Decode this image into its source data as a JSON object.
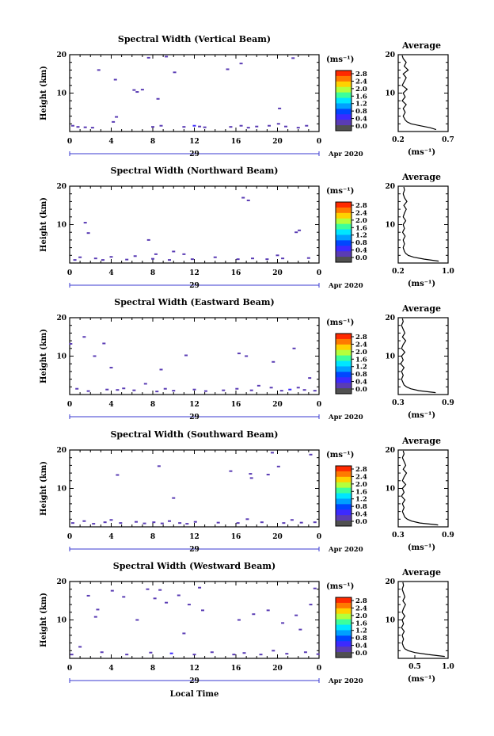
{
  "figure": {
    "xlabel": "Local Time",
    "date_label": "Apr 2020",
    "day_label": "29",
    "ylabel": "Height (km)",
    "unit_label": "(ms⁻¹)",
    "avg_title": "Average",
    "avg_xlabel": "(ms⁻¹)"
  },
  "colorbar": {
    "ticks": [
      "2.8",
      "2.4",
      "2.0",
      "1.6",
      "1.2",
      "0.8",
      "0.4",
      "0.0"
    ],
    "colors": [
      "#ff2a00",
      "#ff7a00",
      "#ffd200",
      "#b4ff3c",
      "#3cff9c",
      "#00e6ff",
      "#00a0ff",
      "#0046ff",
      "#3c2aff",
      "#5a3cb4",
      "#505050"
    ]
  },
  "chart_data": [
    {
      "type": "heatmap",
      "title": "Spectral Width (Vertical Beam)",
      "xlabel": "",
      "ylabel": "Height (km)",
      "xlim": [
        0,
        24
      ],
      "ylim": [
        0,
        20
      ],
      "x_ticks": [
        "0",
        "4",
        "8",
        "12",
        "16",
        "20",
        "0"
      ],
      "y_ticks": [
        "20",
        "10"
      ],
      "points": [
        [
          0.3,
          1.5,
          0.3
        ],
        [
          0.8,
          1.2,
          0.2
        ],
        [
          1.5,
          1.1,
          0.2
        ],
        [
          2.2,
          1.0,
          0.2
        ],
        [
          2.8,
          16,
          0.2
        ],
        [
          4.2,
          2.5,
          0.3
        ],
        [
          4.5,
          3.8,
          0.3
        ],
        [
          4.4,
          13.5,
          0.2
        ],
        [
          6.2,
          10.8,
          0.3
        ],
        [
          6.5,
          10.3,
          0.2
        ],
        [
          7.0,
          10.9,
          0.2
        ],
        [
          7.6,
          19.2,
          0.2
        ],
        [
          8.0,
          1.2,
          0.3
        ],
        [
          8.5,
          8.5,
          0.2
        ],
        [
          8.8,
          1.5,
          0.2
        ],
        [
          9.3,
          19.5,
          0.3
        ],
        [
          10.1,
          15.4,
          0.2
        ],
        [
          11.0,
          1.2,
          0.3
        ],
        [
          12.0,
          1.5,
          0.6
        ],
        [
          12.5,
          1.3,
          0.3
        ],
        [
          13.0,
          1.1,
          0.2
        ],
        [
          15.2,
          16.2,
          0.2
        ],
        [
          15.5,
          1.2,
          0.3
        ],
        [
          16.5,
          1.5,
          0.4
        ],
        [
          16.5,
          17.7,
          0.2
        ],
        [
          17.2,
          1.0,
          0.2
        ],
        [
          18.0,
          1.3,
          0.3
        ],
        [
          19.2,
          1.5,
          0.2
        ],
        [
          20.1,
          2.0,
          0.3
        ],
        [
          20.2,
          6.0,
          0.2
        ],
        [
          20.8,
          1.3,
          0.3
        ],
        [
          21.5,
          19.1,
          0.2
        ],
        [
          22.0,
          1.0,
          0.2
        ],
        [
          22.8,
          1.5,
          0.3
        ]
      ]
    },
    {
      "type": "heatmap",
      "title": "Spectral Width (Northward Beam)",
      "xlabel": "",
      "ylabel": "Height (km)",
      "xlim": [
        0,
        24
      ],
      "ylim": [
        0,
        20
      ],
      "x_ticks": [
        "0",
        "4",
        "8",
        "12",
        "16",
        "20",
        "0"
      ],
      "y_ticks": [
        "20",
        "10"
      ],
      "points": [
        [
          0.5,
          0.8,
          0.3
        ],
        [
          1.0,
          1.5,
          0.2
        ],
        [
          1.5,
          10.5,
          0.2
        ],
        [
          1.8,
          7.8,
          0.2
        ],
        [
          2.5,
          1.2,
          0.3
        ],
        [
          3.2,
          0.8,
          0.2
        ],
        [
          4.0,
          1.6,
          0.4
        ],
        [
          5.5,
          0.9,
          0.2
        ],
        [
          6.3,
          1.8,
          0.2
        ],
        [
          7.6,
          6.0,
          0.2
        ],
        [
          8.0,
          1.1,
          0.3
        ],
        [
          8.3,
          2.3,
          0.2
        ],
        [
          9.6,
          0.8,
          0.2
        ],
        [
          10.0,
          3.0,
          0.2
        ],
        [
          11.0,
          2.3,
          0.2
        ],
        [
          11.8,
          1.0,
          0.3
        ],
        [
          14.0,
          1.5,
          0.2
        ],
        [
          16.2,
          1.0,
          0.2
        ],
        [
          16.7,
          17.0,
          0.2
        ],
        [
          17.2,
          16.3,
          0.2
        ],
        [
          17.6,
          1.2,
          0.3
        ],
        [
          19.0,
          1.0,
          0.2
        ],
        [
          20.0,
          2.0,
          0.2
        ],
        [
          20.5,
          1.2,
          0.3
        ],
        [
          21.8,
          8.0,
          0.2
        ],
        [
          22.1,
          8.5,
          0.2
        ],
        [
          23.0,
          1.3,
          0.4
        ]
      ]
    },
    {
      "type": "heatmap",
      "title": "Spectral Width (Eastward Beam)",
      "xlabel": "",
      "ylabel": "Height (km)",
      "xlim": [
        0,
        24
      ],
      "ylim": [
        0,
        20
      ],
      "x_ticks": [
        "0",
        "4",
        "8",
        "12",
        "16",
        "20",
        "0"
      ],
      "y_ticks": [
        "20",
        "10"
      ],
      "points": [
        [
          0.1,
          13.2,
          0.2
        ],
        [
          0.7,
          1.5,
          0.3
        ],
        [
          1.4,
          15.0,
          0.2
        ],
        [
          1.8,
          0.9,
          0.3
        ],
        [
          2.4,
          10.0,
          0.2
        ],
        [
          3.3,
          13.3,
          0.2
        ],
        [
          3.6,
          1.3,
          0.3
        ],
        [
          4.0,
          7.0,
          0.2
        ],
        [
          4.6,
          1.2,
          0.4
        ],
        [
          5.2,
          1.6,
          0.3
        ],
        [
          6.2,
          1.1,
          0.2
        ],
        [
          7.3,
          2.8,
          0.2
        ],
        [
          8.4,
          0.8,
          0.3
        ],
        [
          8.8,
          6.5,
          0.2
        ],
        [
          9.2,
          1.5,
          0.3
        ],
        [
          10.0,
          1.0,
          0.2
        ],
        [
          11.2,
          10.2,
          0.2
        ],
        [
          12.0,
          1.3,
          0.3
        ],
        [
          13.1,
          0.9,
          0.2
        ],
        [
          14.8,
          1.1,
          0.3
        ],
        [
          16.1,
          1.5,
          0.2
        ],
        [
          16.3,
          10.7,
          0.2
        ],
        [
          17.0,
          10.0,
          0.2
        ],
        [
          17.5,
          1.1,
          0.3
        ],
        [
          18.2,
          2.3,
          0.2
        ],
        [
          19.4,
          1.8,
          0.4
        ],
        [
          19.6,
          8.5,
          0.2
        ],
        [
          20.4,
          1.0,
          0.2
        ],
        [
          21.2,
          1.3,
          0.5
        ],
        [
          21.6,
          12.0,
          0.2
        ],
        [
          22.0,
          1.8,
          0.3
        ],
        [
          22.6,
          1.2,
          0.2
        ],
        [
          23.1,
          4.3,
          0.2
        ],
        [
          23.6,
          1.0,
          0.3
        ]
      ]
    },
    {
      "type": "heatmap",
      "title": "Spectral Width (Southward Beam)",
      "xlabel": "",
      "ylabel": "Height (km)",
      "xlim": [
        0,
        24
      ],
      "ylim": [
        0,
        20
      ],
      "x_ticks": [
        "0",
        "4",
        "8",
        "12",
        "16",
        "20",
        "0"
      ],
      "y_ticks": [
        "20",
        "10"
      ],
      "points": [
        [
          0.3,
          1.0,
          0.3
        ],
        [
          1.4,
          1.5,
          0.2
        ],
        [
          2.3,
          0.8,
          0.3
        ],
        [
          3.4,
          1.2,
          0.2
        ],
        [
          4.0,
          1.8,
          0.4
        ],
        [
          4.6,
          13.5,
          0.2
        ],
        [
          4.9,
          1.0,
          0.2
        ],
        [
          6.4,
          1.3,
          0.3
        ],
        [
          7.2,
          0.9,
          0.2
        ],
        [
          8.1,
          1.2,
          0.4
        ],
        [
          8.6,
          15.8,
          0.2
        ],
        [
          8.9,
          0.9,
          0.3
        ],
        [
          9.6,
          1.5,
          0.2
        ],
        [
          10.0,
          7.5,
          0.2
        ],
        [
          10.6,
          1.0,
          0.2
        ],
        [
          11.3,
          0.8,
          0.3
        ],
        [
          12.1,
          1.3,
          0.2
        ],
        [
          14.3,
          1.1,
          0.2
        ],
        [
          15.5,
          14.5,
          0.2
        ],
        [
          16.2,
          1.0,
          0.3
        ],
        [
          17.1,
          2.0,
          0.2
        ],
        [
          17.4,
          13.8,
          0.2
        ],
        [
          17.5,
          12.7,
          0.2
        ],
        [
          18.5,
          1.2,
          0.3
        ],
        [
          19.1,
          13.6,
          0.2
        ],
        [
          19.5,
          19.3,
          0.2
        ],
        [
          20.1,
          15.7,
          0.2
        ],
        [
          20.6,
          1.0,
          0.3
        ],
        [
          21.4,
          1.8,
          0.2
        ],
        [
          22.3,
          1.1,
          0.2
        ],
        [
          23.2,
          18.8,
          0.2
        ],
        [
          23.6,
          1.2,
          0.3
        ]
      ]
    },
    {
      "type": "heatmap",
      "title": "Spectral Width (Westward Beam)",
      "xlabel": "Local Time",
      "ylabel": "Height (km)",
      "xlim": [
        0,
        24
      ],
      "ylim": [
        0,
        20
      ],
      "x_ticks": [
        "0",
        "4",
        "8",
        "12",
        "16",
        "20",
        "0"
      ],
      "y_ticks": [
        "20",
        "10"
      ],
      "points": [
        [
          0.2,
          1.0,
          0.3
        ],
        [
          1.0,
          3.0,
          0.2
        ],
        [
          1.8,
          16.3,
          0.2
        ],
        [
          2.5,
          10.8,
          0.2
        ],
        [
          2.7,
          12.7,
          0.2
        ],
        [
          3.1,
          1.6,
          0.3
        ],
        [
          4.1,
          17.6,
          0.2
        ],
        [
          5.2,
          16.0,
          0.2
        ],
        [
          5.5,
          1.0,
          0.3
        ],
        [
          6.5,
          10.0,
          0.2
        ],
        [
          7.5,
          18.0,
          0.2
        ],
        [
          7.8,
          1.5,
          0.3
        ],
        [
          8.2,
          15.6,
          0.2
        ],
        [
          8.7,
          17.8,
          0.2
        ],
        [
          9.3,
          14.5,
          0.2
        ],
        [
          9.8,
          1.3,
          0.5
        ],
        [
          10.5,
          16.4,
          0.2
        ],
        [
          11.0,
          6.5,
          0.2
        ],
        [
          11.5,
          14.0,
          0.2
        ],
        [
          12.0,
          1.0,
          0.2
        ],
        [
          12.5,
          18.4,
          0.2
        ],
        [
          12.8,
          12.5,
          0.2
        ],
        [
          13.7,
          1.6,
          0.3
        ],
        [
          15.8,
          1.0,
          0.2
        ],
        [
          16.3,
          10.0,
          0.2
        ],
        [
          16.8,
          1.4,
          0.3
        ],
        [
          17.7,
          11.5,
          0.2
        ],
        [
          18.4,
          1.0,
          0.2
        ],
        [
          19.1,
          12.5,
          0.2
        ],
        [
          19.6,
          2.0,
          0.3
        ],
        [
          20.5,
          9.2,
          0.2
        ],
        [
          20.9,
          1.2,
          0.2
        ],
        [
          21.8,
          11.2,
          0.2
        ],
        [
          22.2,
          7.5,
          0.2
        ],
        [
          22.7,
          1.6,
          0.3
        ],
        [
          23.2,
          14.0,
          0.2
        ],
        [
          23.6,
          18.2,
          0.2
        ],
        [
          23.9,
          1.1,
          0.3
        ]
      ]
    },
    {
      "type": "line",
      "title": "Average",
      "xlabel": "(ms⁻¹)",
      "ylabel": "",
      "xlim": [
        0.2,
        0.7
      ],
      "ylim": [
        0,
        20
      ],
      "x_ticks": [
        "0.2",
        "0.7"
      ],
      "y_ticks": [
        "20",
        "10"
      ],
      "y": [
        0.5,
        1,
        1.5,
        2,
        2.5,
        3,
        3.5,
        4,
        5,
        6,
        7,
        8,
        9,
        10,
        11,
        12,
        13,
        14,
        15,
        16,
        17,
        18,
        19,
        19.8
      ],
      "x": [
        0.58,
        0.52,
        0.42,
        0.33,
        0.29,
        0.27,
        0.26,
        0.25,
        0.27,
        0.25,
        0.28,
        0.24,
        0.27,
        0.25,
        0.29,
        0.24,
        0.26,
        0.28,
        0.25,
        0.3,
        0.26,
        0.28,
        0.25,
        0.24
      ]
    },
    {
      "type": "line",
      "title": "Average",
      "xlabel": "(ms⁻¹)",
      "ylabel": "",
      "xlim": [
        0.2,
        1.0
      ],
      "ylim": [
        0,
        20
      ],
      "x_ticks": [
        "0.2",
        "1.0"
      ],
      "y_ticks": [
        "20",
        "10"
      ],
      "y": [
        0.5,
        1,
        1.5,
        2,
        2.5,
        3,
        3.5,
        4,
        5,
        6,
        7,
        8,
        9,
        10,
        11,
        12,
        13,
        14,
        15,
        16,
        17,
        18,
        19,
        19.8
      ],
      "x": [
        0.85,
        0.62,
        0.45,
        0.36,
        0.32,
        0.3,
        0.29,
        0.28,
        0.3,
        0.28,
        0.31,
        0.27,
        0.3,
        0.28,
        0.32,
        0.28,
        0.3,
        0.33,
        0.29,
        0.34,
        0.3,
        0.28,
        0.3,
        0.29
      ]
    },
    {
      "type": "line",
      "title": "Average",
      "xlabel": "(ms⁻¹)",
      "ylabel": "",
      "xlim": [
        0.3,
        0.9
      ],
      "ylim": [
        0,
        20
      ],
      "x_ticks": [
        "0.3",
        "0.9"
      ],
      "y_ticks": [
        "20",
        "10"
      ],
      "y": [
        0.5,
        1,
        1.5,
        2,
        2.5,
        3,
        3.5,
        4,
        5,
        6,
        7,
        8,
        9,
        10,
        11,
        12,
        13,
        14,
        15,
        16,
        17,
        18,
        19,
        19.8
      ],
      "x": [
        0.75,
        0.55,
        0.45,
        0.4,
        0.37,
        0.36,
        0.35,
        0.34,
        0.36,
        0.34,
        0.37,
        0.33,
        0.36,
        0.34,
        0.38,
        0.34,
        0.36,
        0.39,
        0.35,
        0.38,
        0.36,
        0.34,
        0.36,
        0.35
      ]
    },
    {
      "type": "line",
      "title": "Average",
      "xlabel": "(ms⁻¹)",
      "ylabel": "",
      "xlim": [
        0.3,
        0.9
      ],
      "ylim": [
        0,
        20
      ],
      "x_ticks": [
        "0.3",
        "0.9"
      ],
      "y_ticks": [
        "20",
        "10"
      ],
      "y": [
        0.5,
        1,
        1.5,
        2,
        2.5,
        3,
        3.5,
        4,
        5,
        6,
        7,
        8,
        9,
        10,
        11,
        12,
        13,
        14,
        15,
        16,
        17,
        18,
        19,
        19.8
      ],
      "x": [
        0.78,
        0.56,
        0.46,
        0.41,
        0.38,
        0.37,
        0.36,
        0.35,
        0.37,
        0.35,
        0.38,
        0.34,
        0.37,
        0.35,
        0.39,
        0.35,
        0.37,
        0.4,
        0.36,
        0.39,
        0.37,
        0.35,
        0.37,
        0.36
      ]
    },
    {
      "type": "line",
      "title": "Average",
      "xlabel": "(ms⁻¹)",
      "ylabel": "",
      "xlim": [
        0.25,
        1.0
      ],
      "ylim": [
        0,
        20
      ],
      "x_ticks": [
        "0.5",
        "1.0"
      ],
      "y_ticks": [
        "20",
        "10"
      ],
      "y": [
        0.5,
        1,
        1.5,
        2,
        2.5,
        3,
        3.5,
        4,
        5,
        6,
        7,
        8,
        9,
        10,
        11,
        12,
        13,
        14,
        15,
        16,
        17,
        18,
        19,
        19.8
      ],
      "x": [
        0.95,
        0.7,
        0.5,
        0.4,
        0.35,
        0.33,
        0.32,
        0.31,
        0.33,
        0.31,
        0.34,
        0.3,
        0.33,
        0.31,
        0.35,
        0.31,
        0.33,
        0.36,
        0.32,
        0.35,
        0.33,
        0.31,
        0.33,
        0.32
      ]
    }
  ]
}
